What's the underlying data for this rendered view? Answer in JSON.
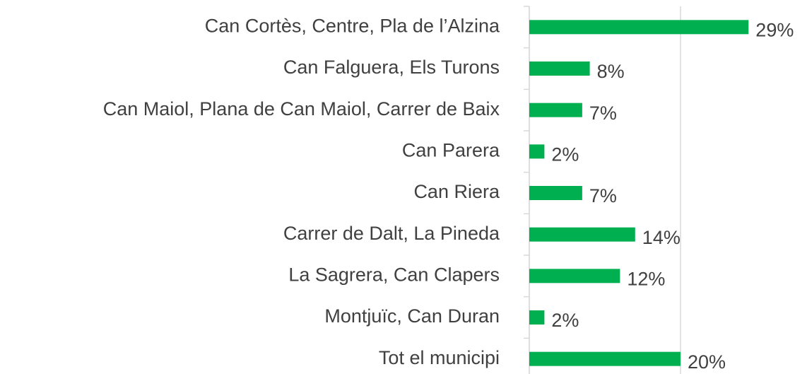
{
  "chart_data": {
    "type": "bar",
    "orientation": "horizontal",
    "categories": [
      "Can Cortès, Centre, Pla de l’Alzina",
      "Can Falguera, Els Turons",
      "Can Maiol, Plana de Can Maiol, Carrer de Baix",
      "Can Parera",
      "Can Riera",
      "Carrer de Dalt, La Pineda",
      "La Sagrera, Can Clapers",
      "Montjuïc, Can Duran",
      "Tot el municipi"
    ],
    "values": [
      29,
      8,
      7,
      2,
      7,
      14,
      12,
      2,
      20
    ],
    "value_labels": [
      "29%",
      "8%",
      "7%",
      "2%",
      "7%",
      "14%",
      "12%",
      "2%",
      "20%"
    ],
    "color": "#00b050",
    "xlim": [
      0,
      40
    ],
    "xticks": [
      0,
      20,
      40
    ],
    "grid": true
  }
}
